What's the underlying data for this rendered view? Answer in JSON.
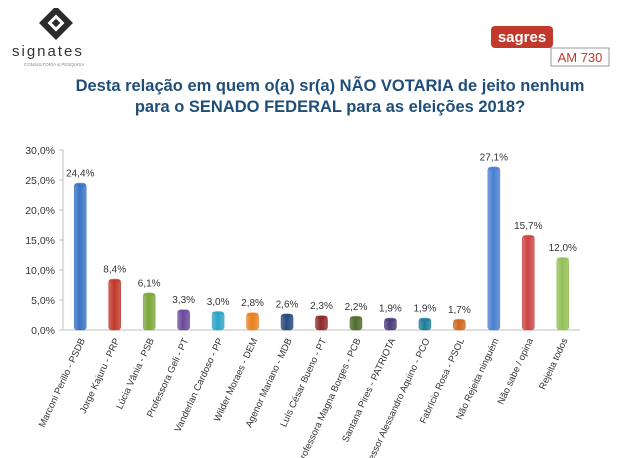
{
  "header": {
    "left_logo": {
      "name": "signates",
      "tagline": "CONSULTORIA & PESQUISA"
    },
    "right_logo": {
      "name": "sagres",
      "station": "AM 730",
      "accent": "#c0392b"
    }
  },
  "title_lines": [
    "Desta relação em quem o(a) sr(a) NÃO VOTARIA de jeito nenhum",
    "para o SENADO FEDERAL para as eleições 2018?"
  ],
  "chart_data": {
    "type": "bar",
    "title": "Desta relação em quem o(a) sr(a) NÃO VOTARIA de jeito nenhum para o SENADO FEDERAL para as eleições 2018?",
    "xlabel": "",
    "ylabel": "",
    "ylim": [
      0,
      30
    ],
    "y_ticks": [
      "0,0%",
      "5,0%",
      "10,0%",
      "15,0%",
      "20,0%",
      "25,0%",
      "30,0%"
    ],
    "grid": false,
    "legend": "none",
    "categories": [
      "Marconi Perillo - PSDB",
      "Jorge Kajuru - PRP",
      "Lúcia Vânia - PSB",
      "Professora Geli - PT",
      "Vanderlan Cardoso - PP",
      "Wilder Moraes - DEM",
      "Agenor Mariano - MDB",
      "Luís César Bueno - PT",
      "Professora Magna Borges - PCB",
      "Santana Pires - PATRIOTA",
      "Professor Alessandro Aquino - PCO",
      "Fabrício Rosa - PSOL",
      "Não Rejeita ninguém",
      "Não sabe / opina",
      "Rejeita todos"
    ],
    "values": [
      24.4,
      8.4,
      6.1,
      3.3,
      3.0,
      2.8,
      2.6,
      2.3,
      2.2,
      1.9,
      1.9,
      1.7,
      27.1,
      15.7,
      12.0
    ],
    "data_labels": [
      "24,4%",
      "8,4%",
      "6,1%",
      "3,3%",
      "3,0%",
      "2,8%",
      "2,6%",
      "2,3%",
      "2,2%",
      "1,9%",
      "1,9%",
      "1,7%",
      "27,1%",
      "15,7%",
      "12,0%"
    ],
    "colors": [
      "#3a73c4",
      "#c0392b",
      "#7aa83a",
      "#6a4a9a",
      "#2ea3c8",
      "#e8801e",
      "#27497e",
      "#8e2a2a",
      "#4f6b2a",
      "#4a3d7a",
      "#1f7c99",
      "#d2691e",
      "#4a7fd0",
      "#cc4444",
      "#93bf57"
    ]
  }
}
